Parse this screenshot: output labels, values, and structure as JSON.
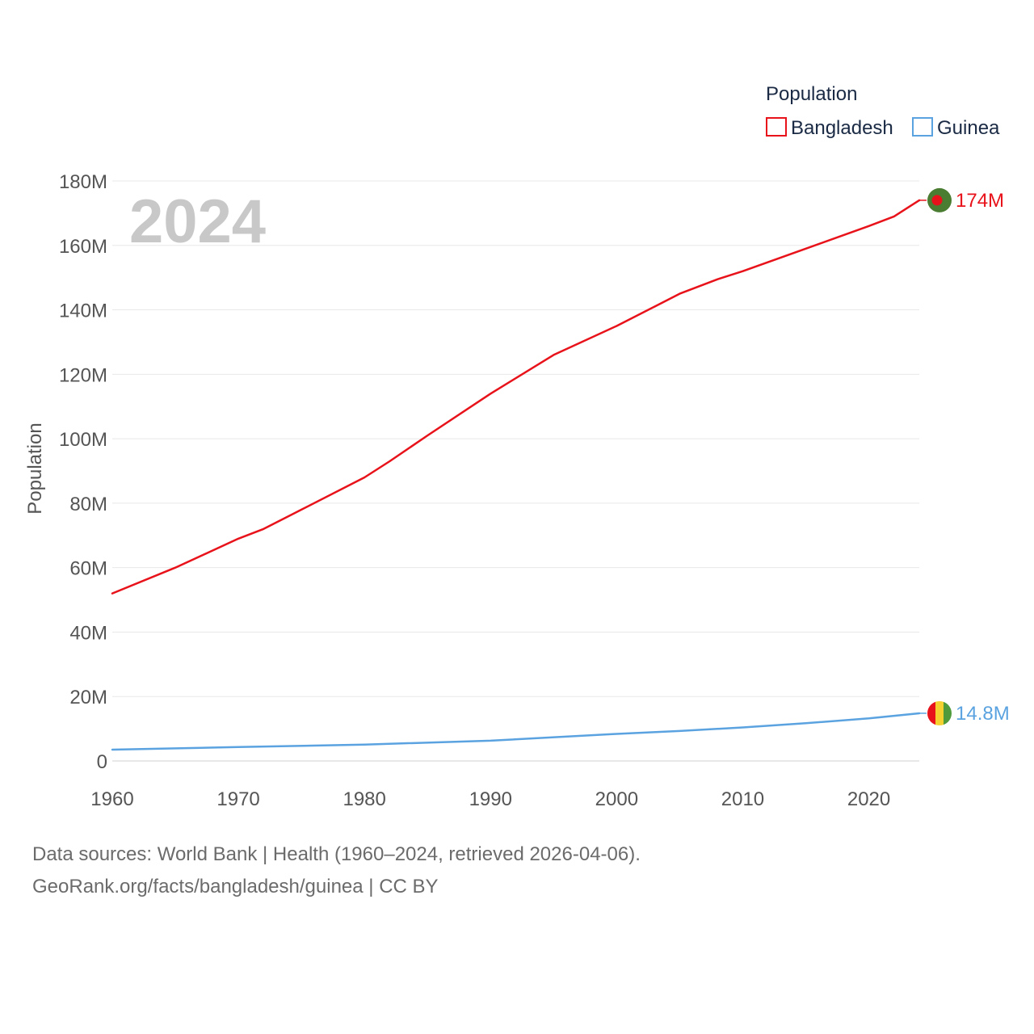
{
  "chart_data": {
    "type": "line",
    "year_label": "2024",
    "ylabel": "Population",
    "xlim": [
      1960,
      2024
    ],
    "ylim": [
      0,
      180000000
    ],
    "x_ticks": [
      1960,
      1970,
      1980,
      1990,
      2000,
      2010,
      2020
    ],
    "y_ticks": [
      0,
      20000000,
      40000000,
      60000000,
      80000000,
      100000000,
      120000000,
      140000000,
      160000000,
      180000000
    ],
    "y_tick_labels": [
      "0",
      "20M",
      "40M",
      "60M",
      "80M",
      "100M",
      "120M",
      "140M",
      "160M",
      "180M"
    ],
    "legend": {
      "title": "Population",
      "position": "top-right"
    },
    "grid": true,
    "series": [
      {
        "name": "Bangladesh",
        "color": "#e8121a",
        "end_label": "174M",
        "flag": "bangladesh",
        "x": [
          1960,
          1965,
          1970,
          1972,
          1975,
          1980,
          1982,
          1985,
          1990,
          1995,
          2000,
          2003,
          2005,
          2008,
          2010,
          2015,
          2020,
          2022,
          2024
        ],
        "values": [
          52000000,
          60000000,
          69000000,
          72000000,
          78000000,
          88000000,
          93000000,
          101000000,
          114000000,
          126000000,
          135000000,
          141000000,
          145000000,
          149500000,
          152000000,
          159000000,
          166000000,
          169000000,
          174000000
        ]
      },
      {
        "name": "Guinea",
        "color": "#5ba3e0",
        "end_label": "14.8M",
        "flag": "guinea",
        "x": [
          1960,
          1970,
          1980,
          1990,
          2000,
          2005,
          2010,
          2015,
          2020,
          2024
        ],
        "values": [
          3500000,
          4300000,
          5100000,
          6300000,
          8400000,
          9300000,
          10400000,
          11700000,
          13200000,
          14800000
        ]
      }
    ]
  },
  "flags": {
    "bangladesh": {
      "field": "#4a7c32",
      "disc": "#e8121a"
    },
    "guinea": {
      "stripes": [
        "#e8121a",
        "#f5d130",
        "#4f9a3a"
      ]
    }
  },
  "footer": {
    "line1": "Data sources: World Bank | Health (1960–2024, retrieved 2026-04-06).",
    "line2": "GeoRank.org/facts/bangladesh/guinea | CC BY"
  }
}
